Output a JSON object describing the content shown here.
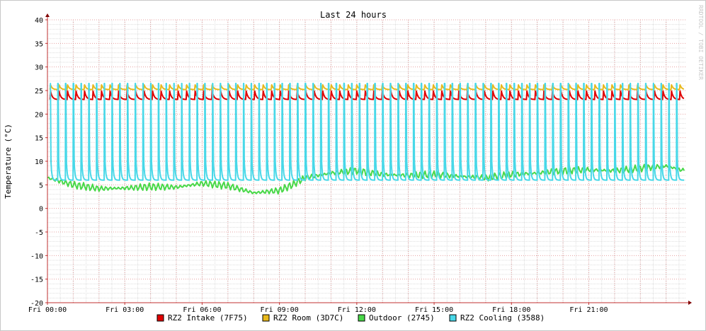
{
  "chart_data": {
    "type": "line",
    "title": "Last 24 hours",
    "ylabel": "Temperature (°C)",
    "watermark": "RRDTOOL / TOBI OETIKER",
    "ylim": [
      -20,
      40
    ],
    "yticks": [
      -20,
      -15,
      -10,
      -5,
      0,
      5,
      10,
      15,
      20,
      25,
      30,
      35,
      40
    ],
    "xlim": [
      0,
      24.75
    ],
    "xticks": [
      {
        "hour": 0,
        "label": "Fri 00:00"
      },
      {
        "hour": 3,
        "label": "Fri 03:00"
      },
      {
        "hour": 6,
        "label": "Fri 06:00"
      },
      {
        "hour": 9,
        "label": "Fri 09:00"
      },
      {
        "hour": 12,
        "label": "Fri 12:00"
      },
      {
        "hour": 15,
        "label": "Fri 15:00"
      },
      {
        "hour": 18,
        "label": "Fri 18:00"
      },
      {
        "hour": 21,
        "label": "Fri 21:00"
      }
    ],
    "grid": true,
    "legend": "bottom",
    "series": [
      {
        "name": "RZ2 Intake (7F75)",
        "color": "#e00000",
        "kind": "sawtooth",
        "period": 0.33,
        "base": 23.1,
        "peak": 24.9,
        "range": [
          0.1,
          24.7
        ]
      },
      {
        "name": "RZ2 Room (3D7C)",
        "color": "#e8b81a",
        "kind": "sawtooth",
        "period": 0.33,
        "base": 25.2,
        "peak": 26.2,
        "range": [
          0.1,
          24.7
        ]
      },
      {
        "name": "Outdoor (2745)",
        "color": "#48d848",
        "kind": "points",
        "x": [
          0,
          1,
          2,
          3,
          4,
          5,
          6,
          7,
          8,
          9,
          9.5,
          10,
          11,
          12,
          13,
          14,
          15,
          16,
          17,
          18,
          19,
          20,
          21,
          22,
          23,
          24,
          24.7
        ],
        "y": [
          6.5,
          5.0,
          4.2,
          4.3,
          4.6,
          4.5,
          5.3,
          4.8,
          3.3,
          3.8,
          5.0,
          6.5,
          7.5,
          8.0,
          7.2,
          7.0,
          7.2,
          6.8,
          6.5,
          7.2,
          7.5,
          8.0,
          8.2,
          8.0,
          8.5,
          9.0,
          8.0
        ]
      },
      {
        "name": "RZ2 Cooling (3588)",
        "color": "#48d8e8",
        "kind": "spikes",
        "period": 0.3,
        "base": 6.0,
        "peak": 26.5,
        "range": [
          0.1,
          24.7
        ]
      }
    ]
  }
}
